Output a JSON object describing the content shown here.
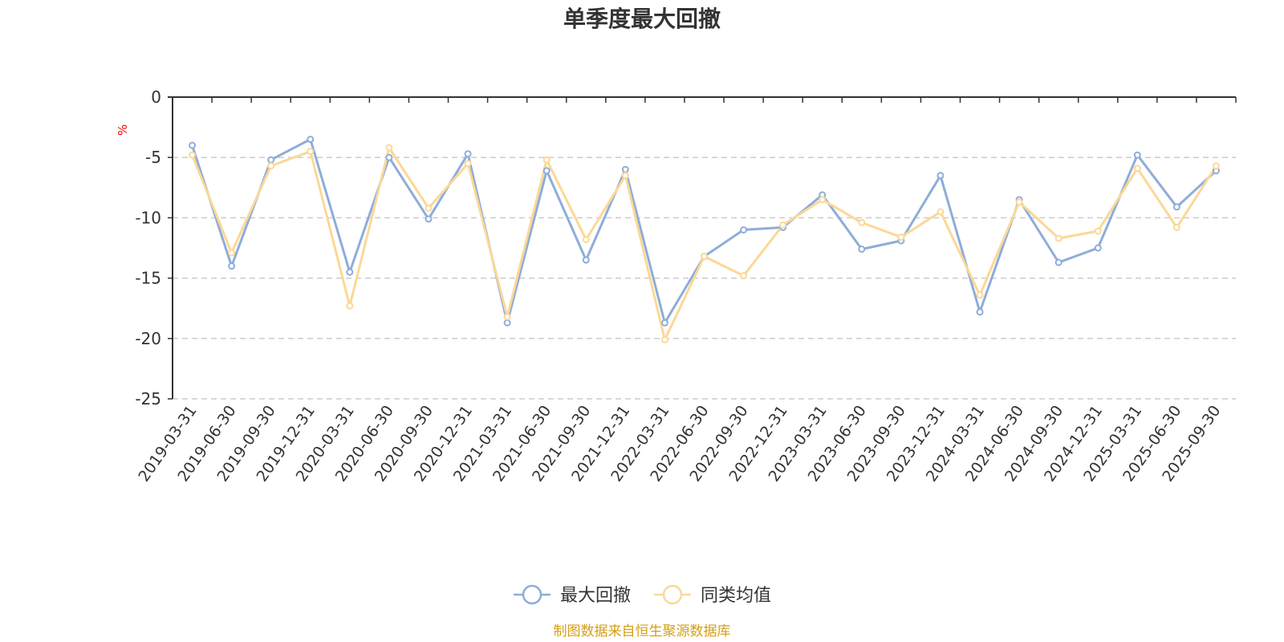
{
  "chart_data": {
    "type": "line",
    "title": "单季度最大回撤",
    "ylabel": "%",
    "xlabel": "",
    "ylim": [
      -25,
      0
    ],
    "yticks": [
      0,
      -5,
      -10,
      -15,
      -20,
      -25
    ],
    "ytick_labels": [
      "0",
      "-5",
      "-10",
      "-15",
      "-20",
      "-25"
    ],
    "grid": true,
    "legend_position": "bottom-center",
    "categories": [
      "2019-03-31",
      "2019-06-30",
      "2019-09-30",
      "2019-12-31",
      "2020-03-31",
      "2020-06-30",
      "2020-09-30",
      "2020-12-31",
      "2021-03-31",
      "2021-06-30",
      "2021-09-30",
      "2021-12-31",
      "2022-03-31",
      "2022-06-30",
      "2022-09-30",
      "2022-12-31",
      "2023-03-31",
      "2023-06-30",
      "2023-09-30",
      "2023-12-31",
      "2024-03-31",
      "2024-06-30",
      "2024-09-30",
      "2024-12-31",
      "2025-03-31",
      "2025-06-30",
      "2025-09-30"
    ],
    "series": [
      {
        "name": "最大回撤",
        "color": "#8eadd9",
        "values": [
          -4.0,
          -14.0,
          -5.2,
          -3.5,
          -14.5,
          -5.0,
          -10.1,
          -4.7,
          -18.7,
          -6.1,
          -13.5,
          -6.0,
          -18.7,
          -13.2,
          -11.0,
          -10.8,
          -8.1,
          -12.6,
          -11.9,
          -6.5,
          -17.8,
          -8.5,
          -13.7,
          -12.5,
          -4.8,
          -9.1,
          -6.1
        ]
      },
      {
        "name": "同类均值",
        "color": "#fcd896",
        "values": [
          -4.8,
          -12.9,
          -5.7,
          -4.5,
          -17.3,
          -4.2,
          -9.2,
          -5.5,
          -18.2,
          -5.2,
          -11.8,
          -6.5,
          -20.1,
          -13.2,
          -14.8,
          -10.6,
          -8.5,
          -10.4,
          -11.6,
          -9.5,
          -16.4,
          -8.7,
          -11.7,
          -11.1,
          -5.9,
          -10.8,
          -5.7
        ]
      }
    ]
  },
  "source_text": "制图数据来自恒生聚源数据库",
  "colors": {
    "axis": "#333333",
    "grid": "#cccccc",
    "unit": "#ff0000",
    "source": "#d4a017"
  }
}
